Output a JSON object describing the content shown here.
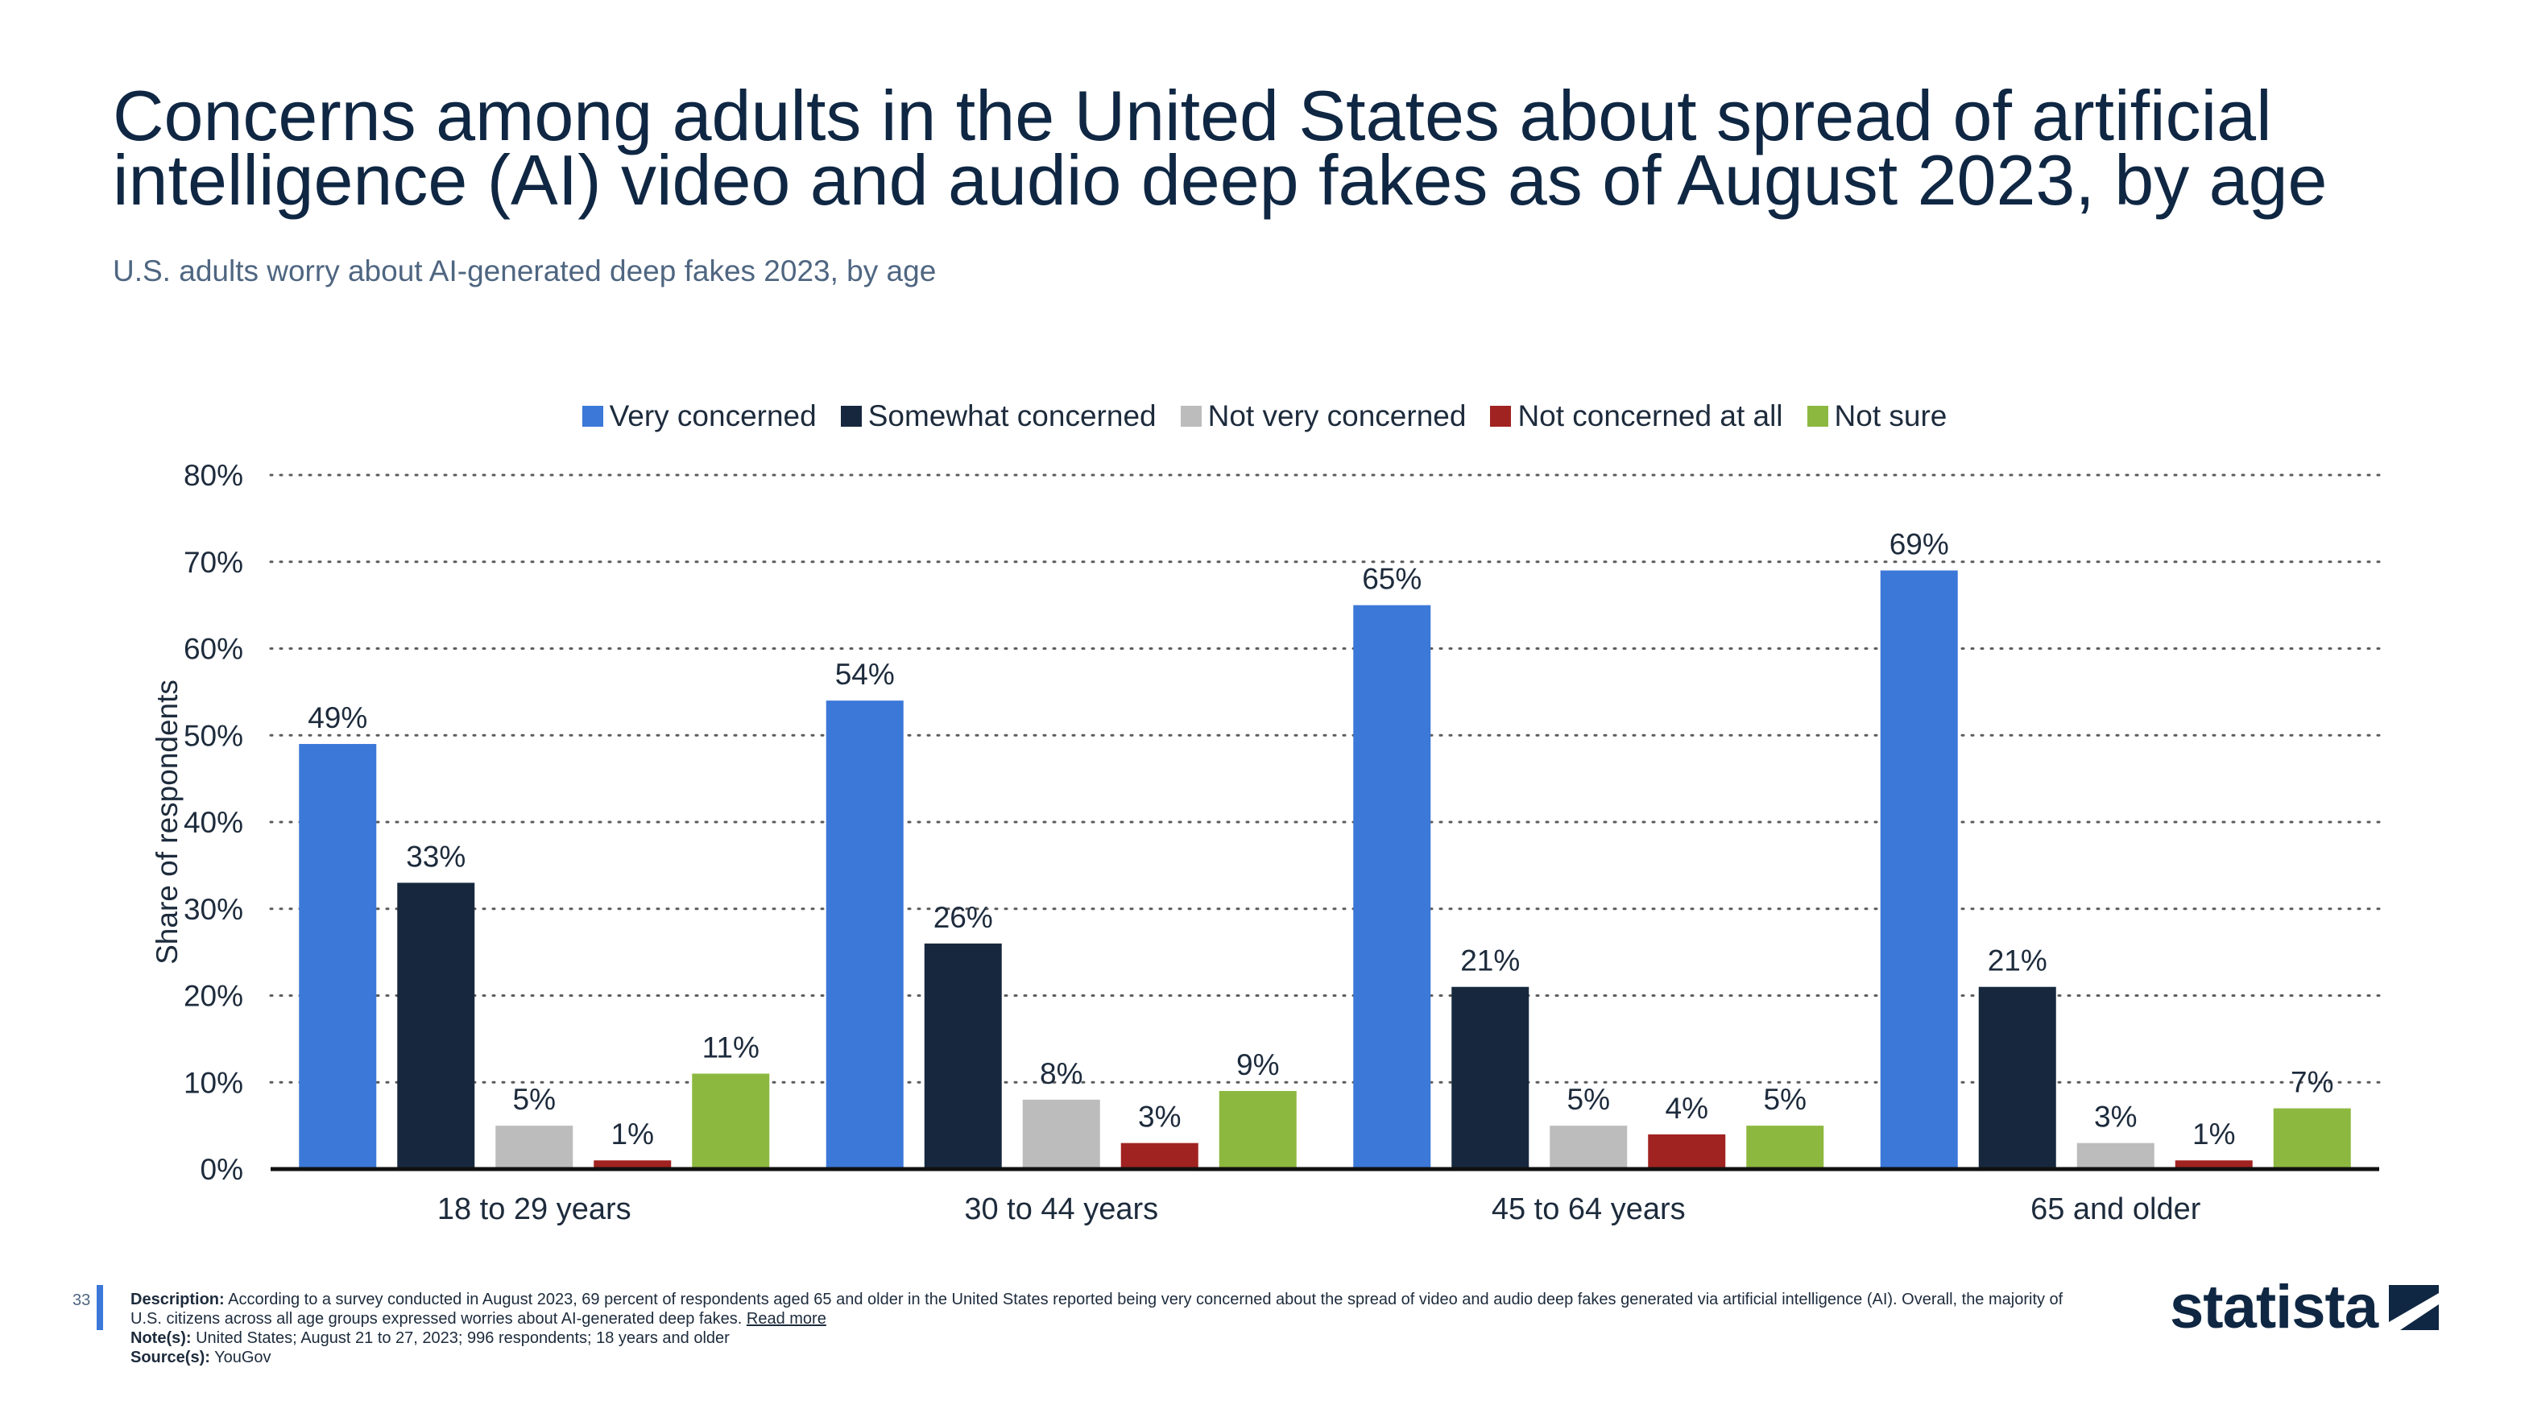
{
  "header": {
    "title": "Concerns among adults in the United States about spread of artificial intelligence (AI) video and audio deep fakes as of August 2023, by age",
    "subtitle": "U.S. adults worry about AI-generated deep fakes 2023, by age"
  },
  "chart_data": {
    "type": "bar",
    "categories": [
      "18 to 29 years",
      "30 to 44 years",
      "45 to 64 years",
      "65 and older"
    ],
    "series": [
      {
        "name": "Very concerned",
        "values": [
          49,
          54,
          65,
          69
        ],
        "color": "#3b78d8"
      },
      {
        "name": "Somewhat concerned",
        "values": [
          33,
          26,
          21,
          21
        ],
        "color": "#17283e"
      },
      {
        "name": "Not very concerned",
        "values": [
          5,
          8,
          5,
          3
        ],
        "color": "#bcbcbc"
      },
      {
        "name": "Not concerned at all",
        "values": [
          1,
          3,
          4,
          1
        ],
        "color": "#a12321"
      },
      {
        "name": "Not sure",
        "values": [
          11,
          9,
          5,
          7
        ],
        "color": "#8db840"
      }
    ],
    "ylabel": "Share of respondents",
    "ylim": [
      0,
      80
    ],
    "yticks": [
      0,
      10,
      20,
      30,
      40,
      50,
      60,
      70,
      80
    ],
    "value_suffix": "%",
    "grid": true,
    "legend_position": "top-center"
  },
  "footer": {
    "page_number": "33",
    "description_label": "Description:",
    "description_text": "According to a survey conducted in August 2023, 69 percent of respondents aged 65 and older in the United States reported being very concerned about the spread of video and audio deep fakes generated via artificial intelligence (AI). Overall, the majority of U.S. citizens across all age groups expressed worries about AI-generated deep fakes.",
    "read_more": "Read more",
    "notes_label": "Note(s):",
    "notes_text": "United States; August 21 to 27, 2023; 996 respondents; 18 years and older",
    "source_label": "Source(s):",
    "source_text": "YouGov"
  },
  "brand": {
    "name": "statista",
    "logo_icon": "statista-logo-icon"
  }
}
